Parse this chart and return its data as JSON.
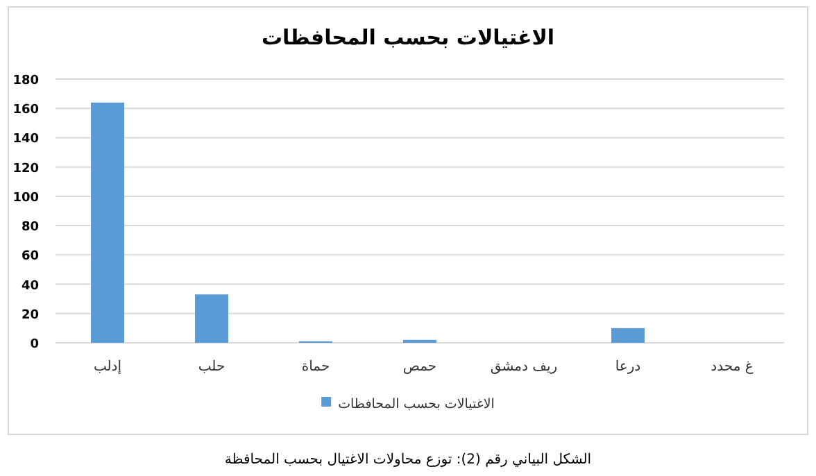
{
  "chart_data": {
    "type": "bar",
    "title": "الاغتيالات بحسب المحافظات",
    "categories": [
      "إدلب",
      "حلب",
      "حماة",
      "حمص",
      "ريف دمشق",
      "درعا",
      "غ محدد"
    ],
    "series": [
      {
        "name": "الاغتيالات بحسب المحافظات",
        "color": "#5b9bd5",
        "values": [
          164,
          33,
          1,
          2,
          0,
          10,
          0
        ]
      }
    ],
    "ylim": [
      0,
      180
    ],
    "yticks": [
      0,
      20,
      40,
      60,
      80,
      100,
      120,
      140,
      160,
      180
    ],
    "grid": "y",
    "legend": "bottom",
    "annotations": [
      "الشكل البياني رقم (2): توزع محاولات الاغتيال بحسب المحافظة"
    ]
  }
}
